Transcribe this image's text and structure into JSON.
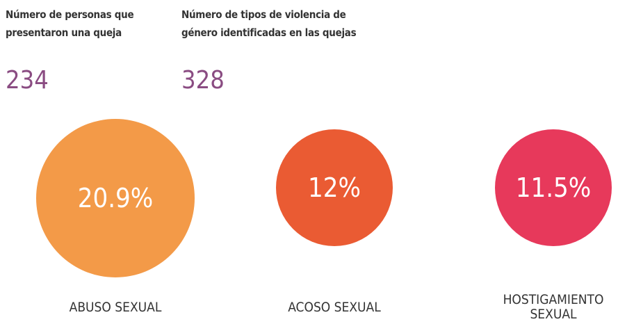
{
  "stats": [
    {
      "label_lines": [
        "Número de personas que",
        "presentaron una queja"
      ],
      "value": "234"
    },
    {
      "label_lines": [
        "Número de tipos de violencia de",
        "género identificadas en las quejas"
      ],
      "value": "328"
    }
  ],
  "bubbles": [
    {
      "value": "20.9%",
      "label_lines": [
        "ABUSO SEXUAL"
      ],
      "color": "#f39a48"
    },
    {
      "value": "12%",
      "label_lines": [
        "ACOSO SEXUAL"
      ],
      "color": "#ea5b33"
    },
    {
      "value": "11.5%",
      "label_lines": [
        "HOSTIGAMIENTO",
        "SEXUAL"
      ],
      "color": "#e7395b"
    }
  ]
}
